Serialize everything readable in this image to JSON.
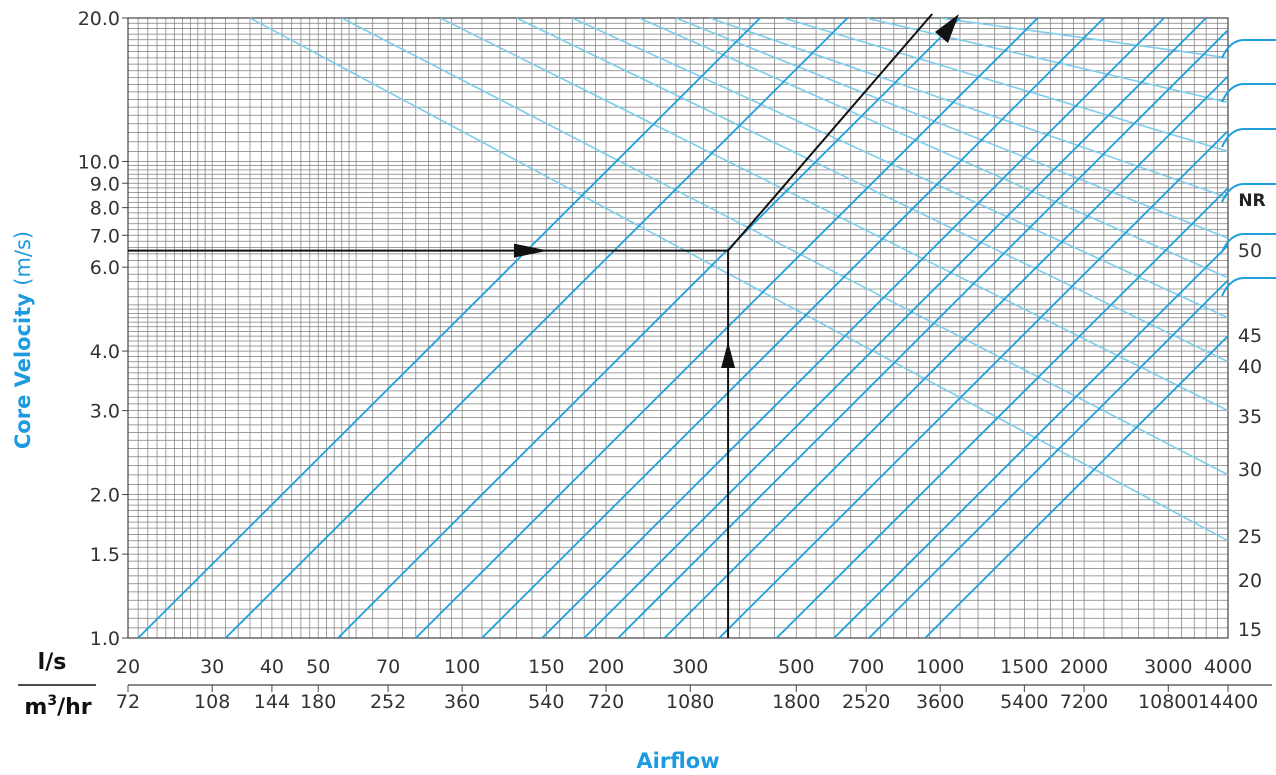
{
  "chart_data": {
    "type": "line",
    "title": "",
    "xlabel": "Airflow",
    "ylabel": "Core Velocity",
    "ylabel_unit": "(m/s)",
    "x_scale": "log",
    "y_scale": "log",
    "xlim": [
      20,
      4000
    ],
    "ylim": [
      1.0,
      20.0
    ],
    "grid": true,
    "x_units_primary": "l/s",
    "x_units_secondary": "m3/hr",
    "x_ticks_ls": [
      "20",
      "30",
      "40",
      "50",
      "70",
      "100",
      "150",
      "200",
      "300",
      "500",
      "700",
      "1000",
      "1500",
      "2000",
      "3000",
      "4000"
    ],
    "x_ticks_m3hr": [
      "72",
      "108",
      "144",
      "180",
      "252",
      "360",
      "540",
      "720",
      "1080",
      "1800",
      "2520",
      "3600",
      "5400",
      "7200",
      "10800",
      "14400"
    ],
    "y_ticks": [
      "1.0",
      "1.5",
      "2.0",
      "3.0",
      "4.0",
      "6.0",
      "7.0",
      "8.0",
      "9.0",
      "10.0",
      "20.0"
    ],
    "nr_title": "NR",
    "nr_labels": [
      "50",
      "45",
      "40",
      "35",
      "30",
      "25",
      "20",
      "15"
    ],
    "colors": {
      "size_lines": "#1fa0dc",
      "nr_lines": "#7dcdec",
      "grid": "#555555",
      "example_path": "#111111",
      "axis_title": "#1e9be0"
    },
    "size_line_x_at_velocity_1": [
      21,
      32,
      55,
      80,
      110,
      147,
      180,
      212,
      265,
      345,
      455,
      600,
      710,
      930
    ],
    "nr_lines": [
      {
        "from": [
          36,
          20.0
        ],
        "to": [
          4000,
          1.6
        ]
      },
      {
        "from": [
          56,
          20.0
        ],
        "to": [
          4000,
          2.2
        ]
      },
      {
        "from": [
          90,
          20.0
        ],
        "to": [
          4000,
          3.0
        ]
      },
      {
        "from": [
          130,
          20.0
        ],
        "to": [
          4000,
          3.8
        ]
      },
      {
        "from": [
          170,
          20.0
        ],
        "to": [
          4000,
          4.7
        ]
      },
      {
        "from": [
          235,
          20.0
        ],
        "to": [
          4000,
          5.7
        ]
      },
      {
        "from": [
          280,
          20.0
        ],
        "to": [
          4000,
          6.9
        ]
      },
      {
        "from": [
          330,
          20.0
        ],
        "to": [
          4000,
          8.4
        ]
      },
      {
        "from": [
          470,
          20.0
        ],
        "to": [
          4000,
          10.5
        ]
      },
      {
        "from": [
          700,
          20.0
        ],
        "to": [
          4000,
          13.3
        ]
      },
      {
        "from": [
          1000,
          20.0
        ],
        "to": [
          4000,
          16.5
        ]
      }
    ],
    "example_path": [
      [
        20,
        6.5
      ],
      [
        360,
        6.5
      ],
      [
        360,
        1.0
      ]
    ],
    "example_path_diagonal": {
      "from": [
        360,
        6.5
      ],
      "to": [
        1000,
        20.0
      ]
    }
  }
}
